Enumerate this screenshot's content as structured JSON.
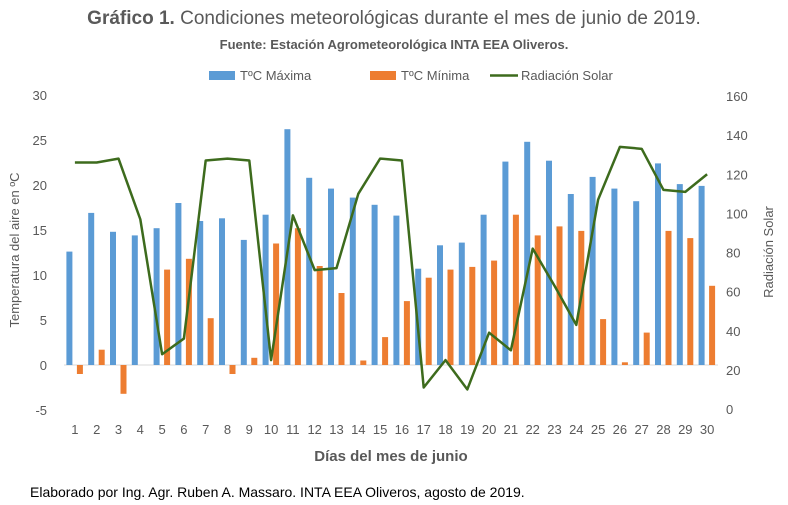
{
  "header": {
    "title_bold": "Gráfico 1.",
    "title_rest": " Condiciones meteorológicas durante el mes de junio de 2019.",
    "subtitle": "Fuente: Estación Agrometeorológica INTA EEA Oliveros."
  },
  "footer": {
    "credit": "Elaborado por Ing. Agr. Ruben A. Massaro. INTA EEA Oliveros, agosto de 2019."
  },
  "colors": {
    "max": "#5b9bd5",
    "min": "#ed7d31",
    "rad": "#3d6b1d"
  },
  "chart_data": {
    "type": "bar",
    "xlabel": "Días del mes de junio",
    "ylabel": "Temperatura del aire en ºC",
    "y2label": "Radiación Solar",
    "ylim": [
      -5,
      30
    ],
    "y_ticks": [
      -5,
      0,
      5,
      10,
      15,
      20,
      25,
      30
    ],
    "y2lim": [
      0,
      160
    ],
    "y2_ticks": [
      0,
      20,
      40,
      60,
      80,
      100,
      120,
      140,
      160
    ],
    "grid": false,
    "legend_position": "top",
    "categories": [
      "1",
      "2",
      "3",
      "4",
      "5",
      "6",
      "7",
      "8",
      "9",
      "10",
      "11",
      "12",
      "13",
      "14",
      "15",
      "16",
      "17",
      "18",
      "19",
      "20",
      "21",
      "22",
      "23",
      "24",
      "25",
      "26",
      "27",
      "28",
      "29",
      "30"
    ],
    "series": [
      {
        "name": "TºC Máxima",
        "type": "bar",
        "axis": "left",
        "values": [
          12.6,
          16.9,
          14.8,
          14.4,
          15.2,
          18.0,
          16.0,
          16.3,
          13.9,
          16.7,
          26.2,
          20.8,
          19.6,
          18.6,
          17.8,
          16.6,
          10.7,
          13.3,
          13.6,
          16.7,
          22.6,
          24.8,
          22.7,
          19.0,
          20.9,
          19.6,
          18.2,
          22.4,
          20.1,
          19.9
        ]
      },
      {
        "name": "TºC Mínima",
        "type": "bar",
        "axis": "left",
        "values": [
          -1.0,
          1.7,
          -3.2,
          0.0,
          10.6,
          11.8,
          5.2,
          -1.0,
          0.8,
          13.5,
          15.2,
          11.0,
          8.0,
          0.5,
          3.1,
          7.1,
          9.7,
          10.6,
          10.9,
          11.6,
          16.7,
          14.4,
          15.4,
          14.9,
          5.1,
          0.3,
          3.6,
          14.9,
          14.1,
          8.8
        ]
      },
      {
        "name": "Radiación Solar",
        "type": "line",
        "axis": "right",
        "values": [
          126,
          126,
          128,
          97,
          28,
          36,
          127,
          128,
          127,
          25,
          99,
          71,
          72,
          110,
          128,
          127,
          11,
          25,
          10,
          39,
          30,
          82,
          63,
          43,
          107,
          134,
          133,
          112,
          111,
          120
        ]
      }
    ]
  }
}
